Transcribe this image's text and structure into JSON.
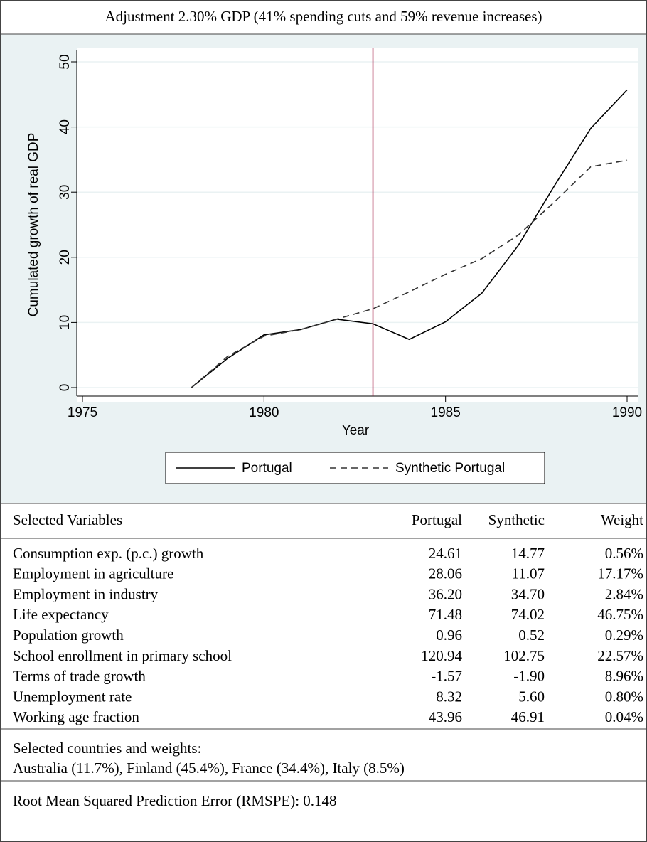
{
  "chart_data": {
    "type": "line",
    "title": "Adjustment 2.30% GDP (41% spending cuts and 59% revenue increases)",
    "x_label": "Year",
    "y_label": "Cumulated growth of real GDP",
    "x": [
      1978,
      1979,
      1980,
      1981,
      1982,
      1983,
      1984,
      1985,
      1986,
      1987,
      1988,
      1989,
      1990
    ],
    "series": [
      {
        "name": "Portugal",
        "color": "#000000",
        "dash": "solid",
        "values": [
          0,
          4.5,
          8.1,
          8.9,
          10.5,
          9.8,
          7.4,
          10.1,
          14.5,
          21.8,
          31.0,
          39.8,
          45.7
        ]
      },
      {
        "name": "Synthetic Portugal",
        "color": "#333333",
        "dash": "dashed",
        "values": [
          0,
          4.8,
          7.9,
          8.9,
          10.5,
          12.1,
          14.7,
          17.4,
          19.8,
          23.4,
          28.5,
          33.9,
          34.9
        ]
      }
    ],
    "xlim": [
      1975,
      1990
    ],
    "ylim": [
      0,
      50
    ],
    "xticks": [
      1975,
      1980,
      1985,
      1990
    ],
    "yticks": [
      0,
      10,
      20,
      30,
      40,
      50
    ],
    "vline": {
      "x": 1983,
      "color": "#a0153e"
    },
    "grid": true,
    "legend": "bottom"
  },
  "table": {
    "header": [
      "Selected Variables",
      "Portugal",
      "Synthetic",
      "Weight"
    ],
    "rows": [
      [
        "Consumption exp. (p.c.) growth",
        "24.61",
        "14.77",
        "0.56%"
      ],
      [
        "Employment in agriculture",
        "28.06",
        "11.07",
        "17.17%"
      ],
      [
        "Employment in industry",
        "36.20",
        "34.70",
        "2.84%"
      ],
      [
        "Life expectancy",
        "71.48",
        "74.02",
        "46.75%"
      ],
      [
        "Population growth",
        "0.96",
        "0.52",
        "0.29%"
      ],
      [
        "School enrollment in primary school",
        "120.94",
        "102.75",
        "22.57%"
      ],
      [
        "Terms of trade growth",
        "-1.57",
        "-1.90",
        "8.96%"
      ],
      [
        "Unemployment rate",
        "8.32",
        "5.60",
        "0.80%"
      ],
      [
        "Working age fraction",
        "43.96",
        "46.91",
        "0.04%"
      ]
    ]
  },
  "notes": {
    "countries_label": "Selected countries and weights:",
    "countries": "Australia (11.7%), Finland (45.4%), France (34.4%), Italy (8.5%)",
    "rmspe": "Root Mean Squared Prediction Error (RMSPE): 0.148"
  }
}
